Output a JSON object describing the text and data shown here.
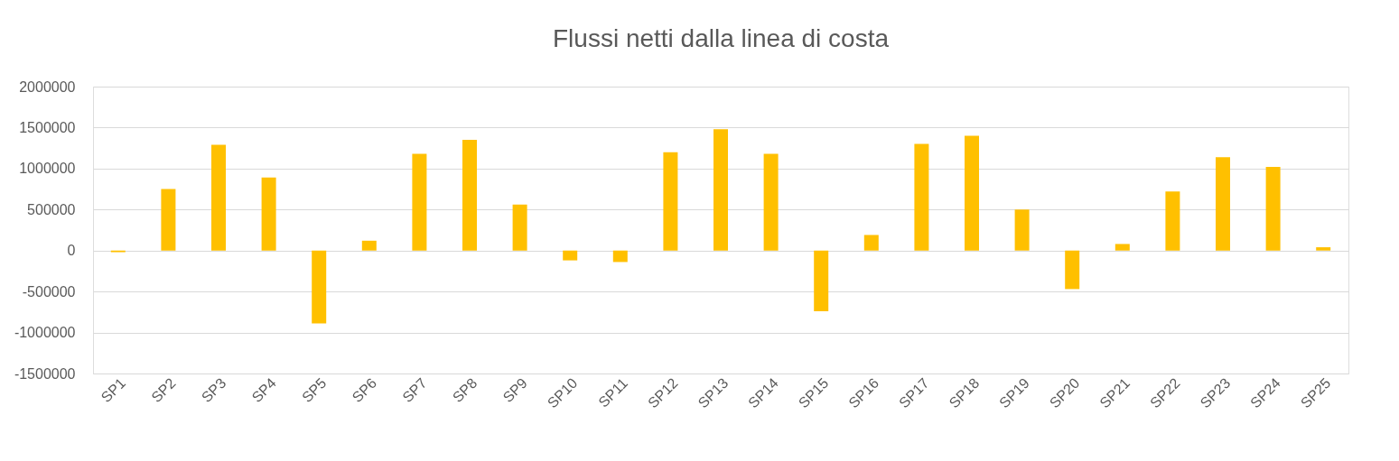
{
  "chart_data": {
    "type": "bar",
    "title": "Flussi netti dalla linea di costa",
    "categories": [
      "SP1",
      "SP2",
      "SP3",
      "SP4",
      "SP5",
      "SP6",
      "SP7",
      "SP8",
      "SP9",
      "SP10",
      "SP11",
      "SP12",
      "SP13",
      "SP14",
      "SP15",
      "SP16",
      "SP17",
      "SP18",
      "SP19",
      "SP20",
      "SP21",
      "SP22",
      "SP23",
      "SP24",
      "SP25"
    ],
    "values": [
      -20000,
      750000,
      1290000,
      890000,
      -890000,
      120000,
      1180000,
      1350000,
      560000,
      -120000,
      -140000,
      1200000,
      1480000,
      1180000,
      -740000,
      190000,
      1300000,
      1400000,
      500000,
      -470000,
      80000,
      720000,
      1140000,
      1020000,
      40000
    ],
    "color": "#ffc000",
    "ylim": [
      -1500000,
      2000000
    ],
    "yticks": [
      -1500000,
      -1000000,
      -500000,
      0,
      500000,
      1000000,
      1500000,
      2000000
    ],
    "grid": "y"
  }
}
